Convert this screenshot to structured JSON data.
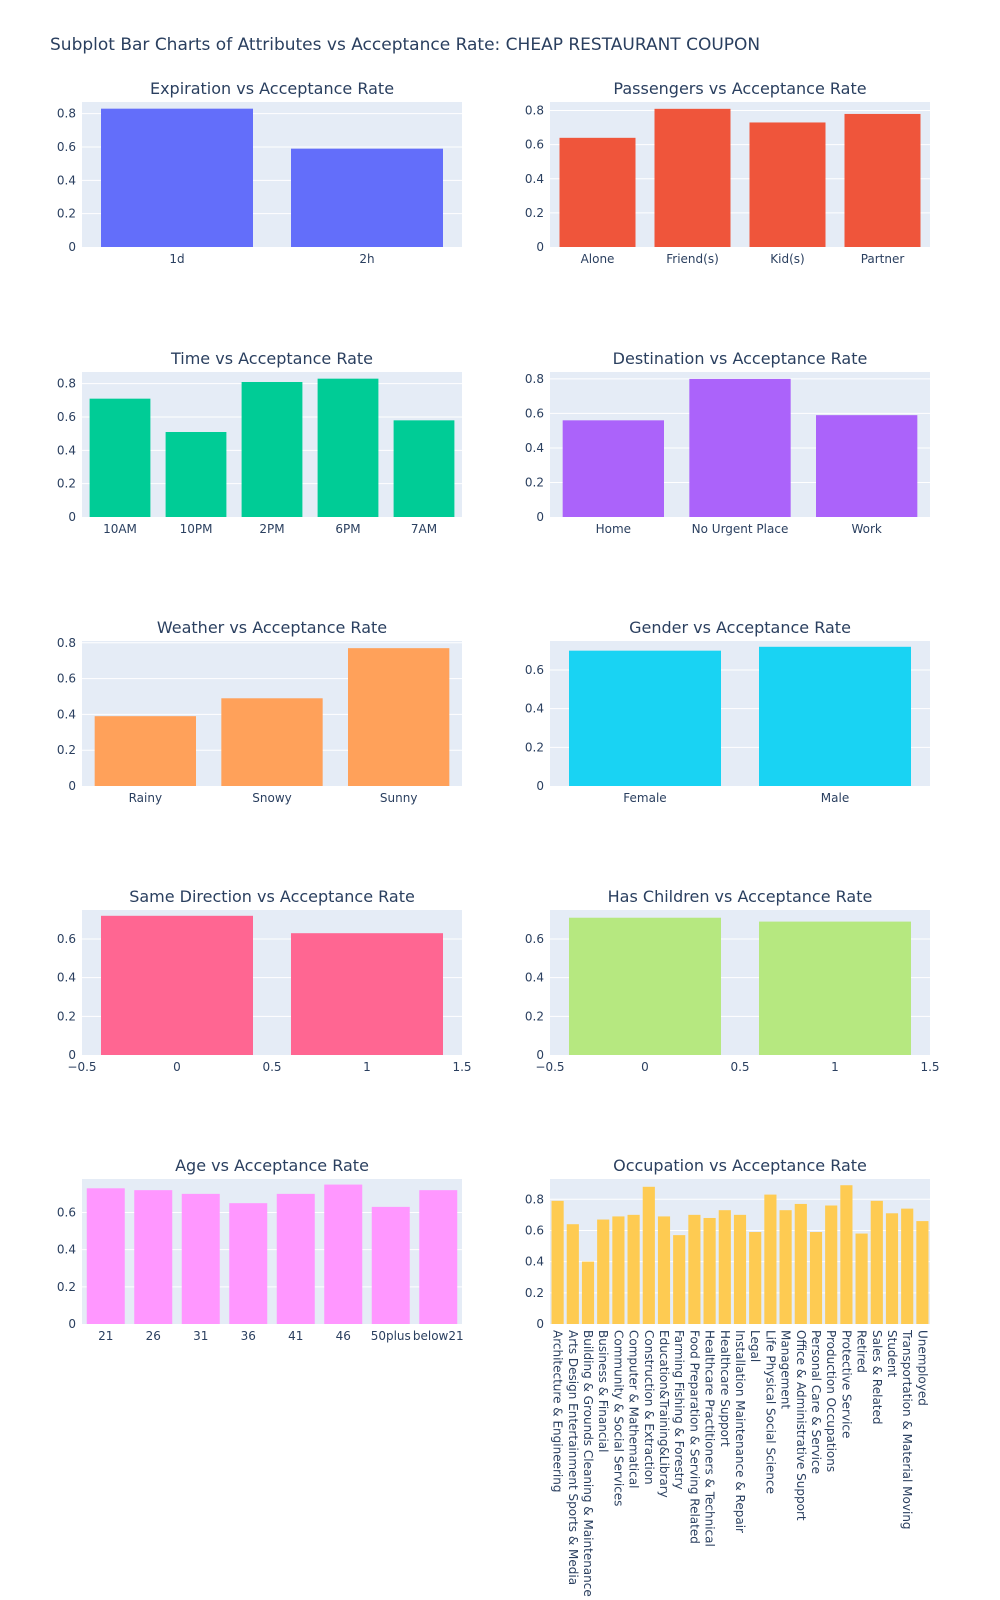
{
  "title": "Subplot Bar Charts of Attributes vs Acceptance Rate: CHEAP RESTAURANT COUPON",
  "chart_data": [
    {
      "type": "bar",
      "title": "Expiration vs Acceptance Rate",
      "categories": [
        "1d",
        "2h"
      ],
      "values": [
        0.83,
        0.59
      ],
      "ylim": [
        0,
        0.87
      ],
      "yticks": [
        0,
        0.2,
        0.4,
        0.6,
        0.8
      ],
      "color": "#636efa"
    },
    {
      "type": "bar",
      "title": "Passengers vs Acceptance Rate",
      "categories": [
        "Alone",
        "Friend(s)",
        "Kid(s)",
        "Partner"
      ],
      "values": [
        0.64,
        0.81,
        0.73,
        0.78
      ],
      "ylim": [
        0,
        0.85
      ],
      "yticks": [
        0,
        0.2,
        0.4,
        0.6,
        0.8
      ],
      "color": "#ef553b"
    },
    {
      "type": "bar",
      "title": "Time vs Acceptance Rate",
      "categories": [
        "10AM",
        "10PM",
        "2PM",
        "6PM",
        "7AM"
      ],
      "values": [
        0.71,
        0.51,
        0.81,
        0.83,
        0.58
      ],
      "ylim": [
        0,
        0.87
      ],
      "yticks": [
        0,
        0.2,
        0.4,
        0.6,
        0.8
      ],
      "color": "#00cc96"
    },
    {
      "type": "bar",
      "title": "Destination vs Acceptance Rate",
      "categories": [
        "Home",
        "No Urgent Place",
        "Work"
      ],
      "values": [
        0.56,
        0.8,
        0.59
      ],
      "ylim": [
        0,
        0.84
      ],
      "yticks": [
        0,
        0.2,
        0.4,
        0.6,
        0.8
      ],
      "color": "#ab63fa"
    },
    {
      "type": "bar",
      "title": "Weather vs Acceptance Rate",
      "categories": [
        "Rainy",
        "Snowy",
        "Sunny"
      ],
      "values": [
        0.39,
        0.49,
        0.77
      ],
      "ylim": [
        0,
        0.81
      ],
      "yticks": [
        0,
        0.2,
        0.4,
        0.6,
        0.8
      ],
      "color": "#ffa15a"
    },
    {
      "type": "bar",
      "title": "Gender vs Acceptance Rate",
      "categories": [
        "Female",
        "Male"
      ],
      "values": [
        0.7,
        0.72
      ],
      "ylim": [
        0,
        0.75
      ],
      "yticks": [
        0,
        0.2,
        0.4,
        0.6
      ],
      "color": "#19d3f3"
    },
    {
      "type": "bar",
      "title": "Same Direction vs Acceptance Rate",
      "x": [
        0,
        1
      ],
      "values": [
        0.72,
        0.63
      ],
      "ylim": [
        0,
        0.75
      ],
      "xlim": [
        -0.5,
        1.5
      ],
      "yticks": [
        0,
        0.2,
        0.4,
        0.6
      ],
      "xticks": [
        "−0.5",
        "0",
        "0.5",
        "1",
        "1.5"
      ],
      "color": "#ff6692"
    },
    {
      "type": "bar",
      "title": "Has Children vs Acceptance Rate",
      "x": [
        0,
        1
      ],
      "values": [
        0.71,
        0.69
      ],
      "ylim": [
        0,
        0.75
      ],
      "xlim": [
        -0.5,
        1.5
      ],
      "yticks": [
        0,
        0.2,
        0.4,
        0.6
      ],
      "xticks": [
        "−0.5",
        "0",
        "0.5",
        "1",
        "1.5"
      ],
      "color": "#b6e880"
    },
    {
      "type": "bar",
      "title": "Age vs Acceptance Rate",
      "categories": [
        "21",
        "26",
        "31",
        "36",
        "41",
        "46",
        "50plus",
        "below21"
      ],
      "values": [
        0.73,
        0.72,
        0.7,
        0.65,
        0.7,
        0.75,
        0.63,
        0.72
      ],
      "ylim": [
        0,
        0.78
      ],
      "yticks": [
        0,
        0.2,
        0.4,
        0.6
      ],
      "color": "#ff97ff"
    },
    {
      "type": "bar",
      "title": "Occupation vs Acceptance Rate",
      "categories": [
        "Architecture & Engineering",
        "Arts Design Entertainment Sports & Media",
        "Building & Grounds Cleaning & Maintenance",
        "Business & Financial",
        "Community & Social Services",
        "Computer & Mathematical",
        "Construction & Extraction",
        "Education&Training&Library",
        "Farming Fishing & Forestry",
        "Food Preparation & Serving Related",
        "Healthcare Practitioners & Technical",
        "Healthcare Support",
        "Installation Maintenance & Repair",
        "Legal",
        "Life Physical Social Science",
        "Management",
        "Office & Administrative Support",
        "Personal Care & Service",
        "Production Occupations",
        "Protective Service",
        "Retired",
        "Sales & Related",
        "Student",
        "Transportation & Material Moving",
        "Unemployed"
      ],
      "values": [
        0.79,
        0.64,
        0.4,
        0.67,
        0.69,
        0.7,
        0.88,
        0.69,
        0.57,
        0.7,
        0.68,
        0.73,
        0.7,
        0.59,
        0.83,
        0.73,
        0.77,
        0.59,
        0.76,
        0.89,
        0.58,
        0.79,
        0.71,
        0.74,
        0.66
      ],
      "ylim": [
        0,
        0.93
      ],
      "yticks": [
        0,
        0.2,
        0.4,
        0.6,
        0.8
      ],
      "color": "#fecb52"
    }
  ]
}
